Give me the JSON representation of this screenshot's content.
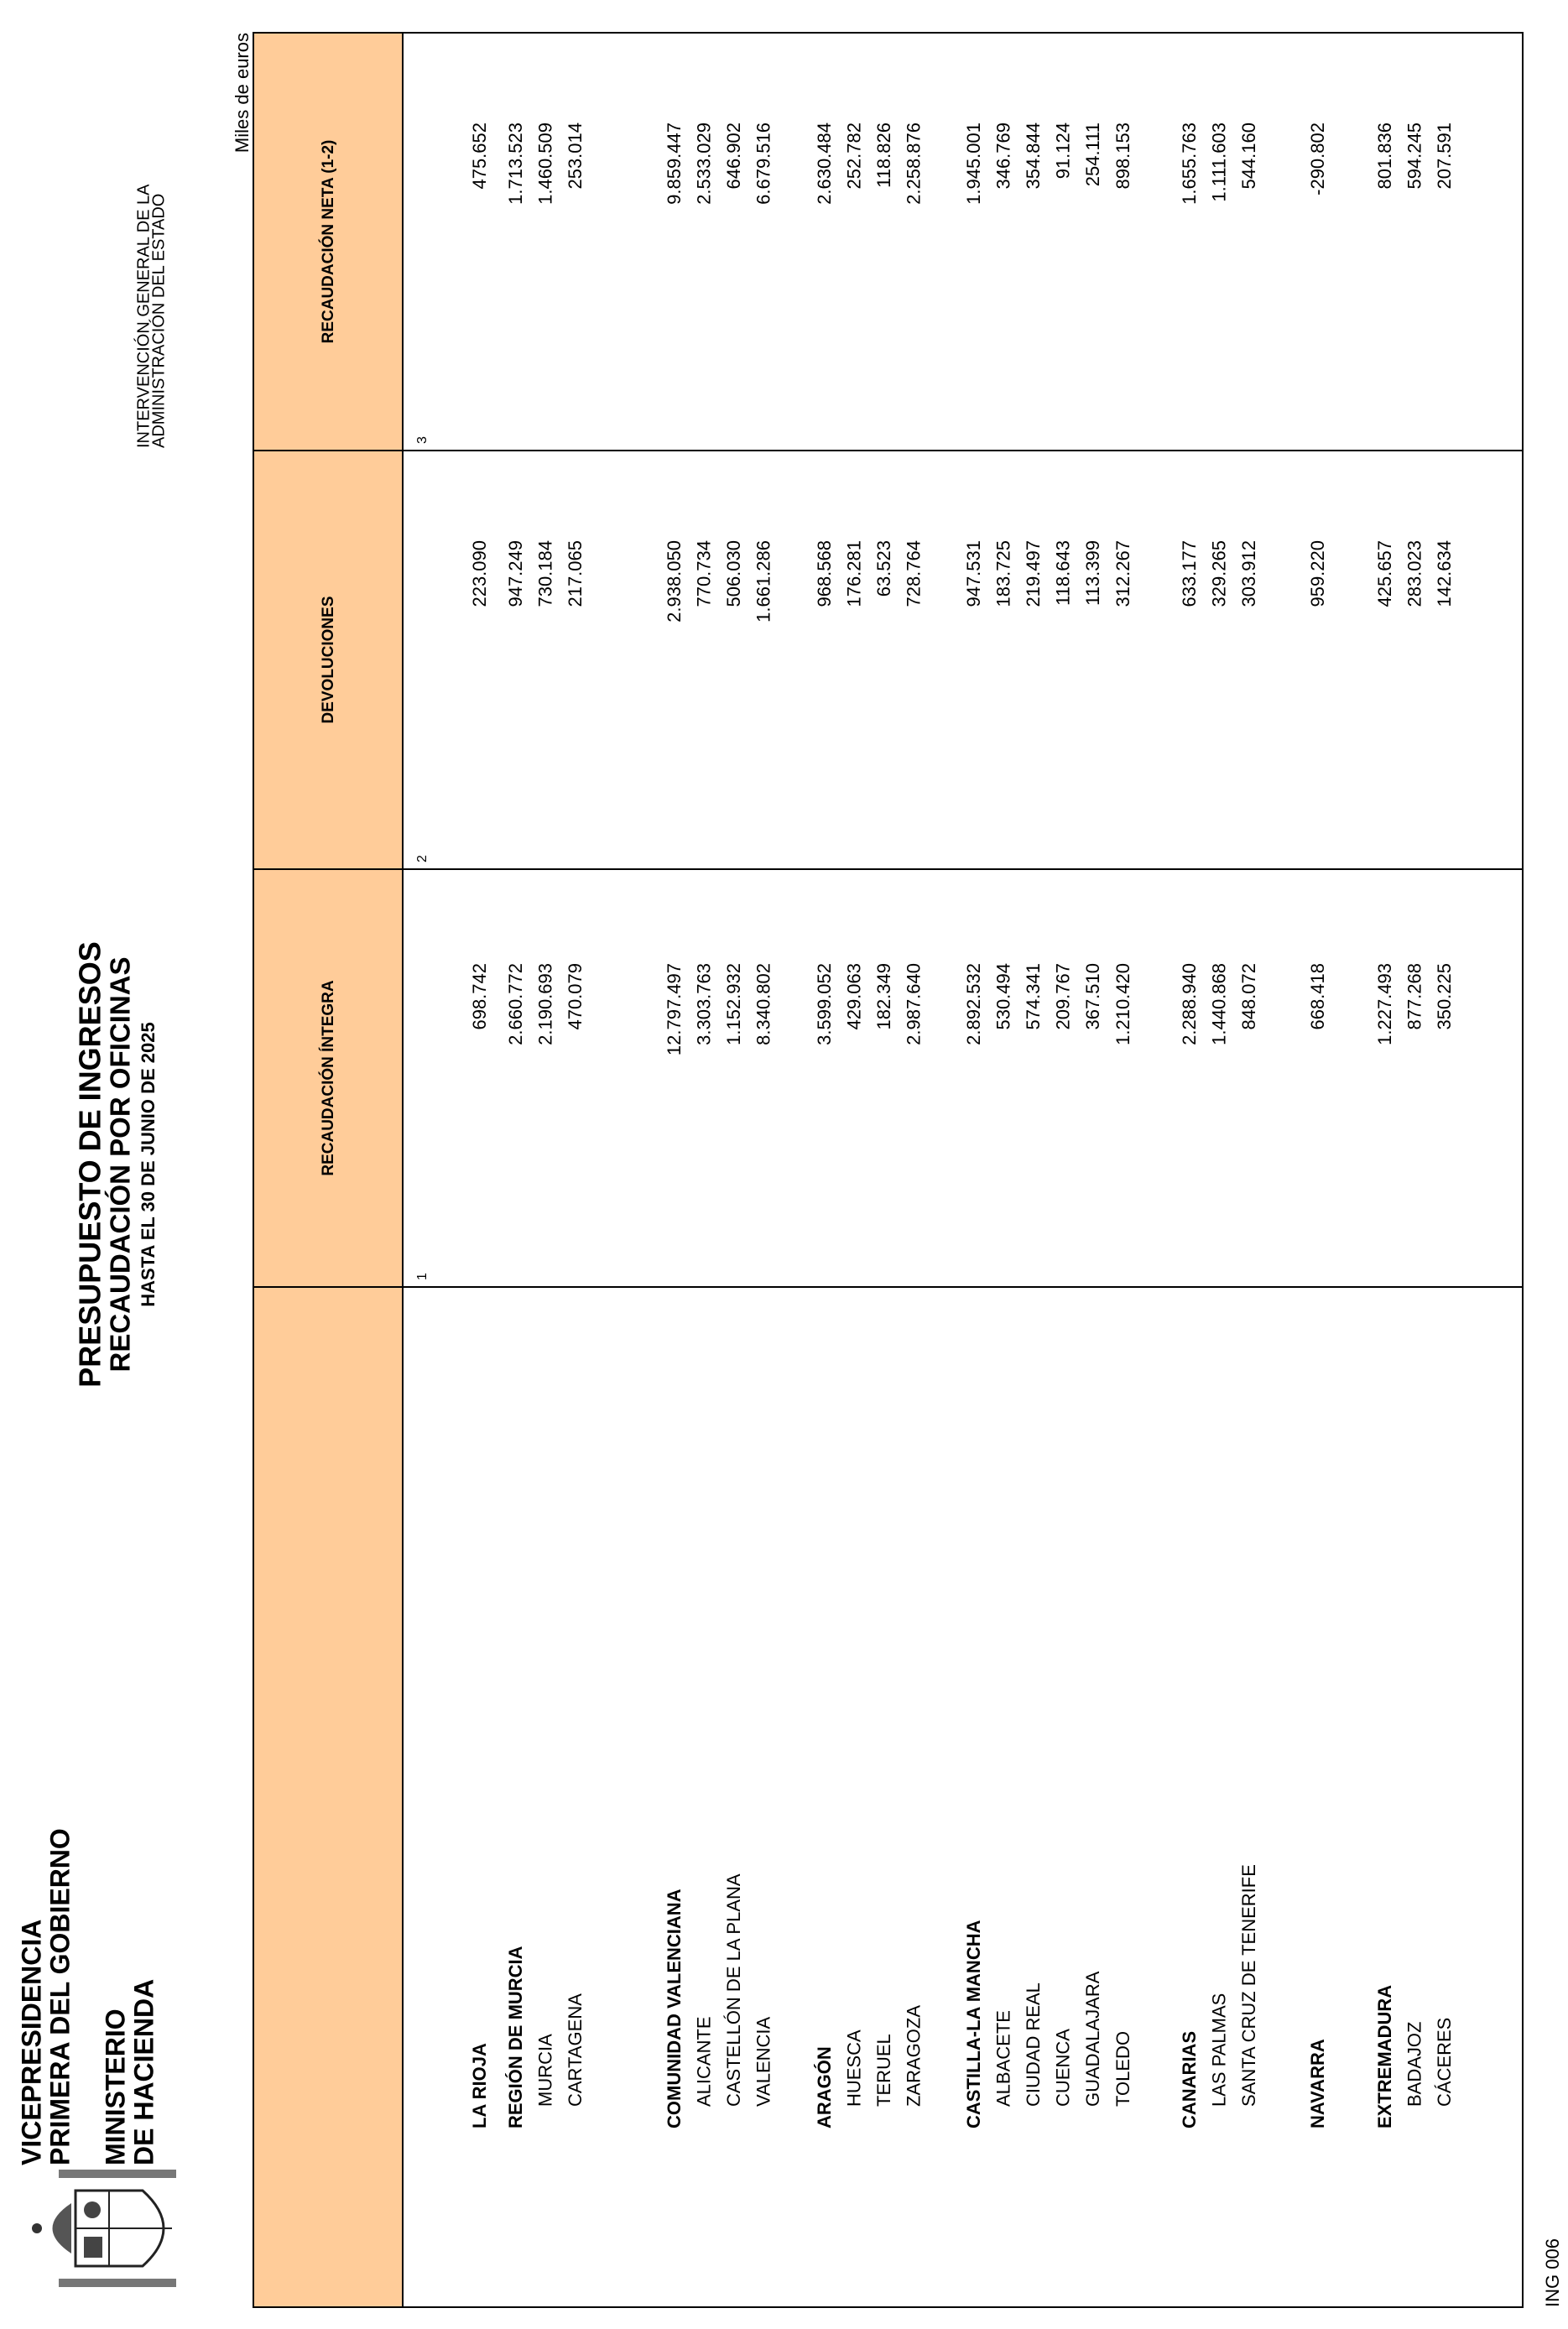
{
  "header": {
    "office": [
      "VICEPRESIDENCIA",
      "PRIMERA DEL GOBIERNO"
    ],
    "ministry": [
      "MINISTERIO",
      "DE HACIENDA"
    ],
    "title": [
      "PRESUPUESTO DE INGRESOS",
      "RECAUDACIÓN POR OFICINAS",
      "HASTA EL 30 DE JUNIO DE 2025"
    ],
    "agency": [
      "INTERVENCIÓN GENERAL DE LA",
      "ADMINISTRACIÓN DEL ESTADO"
    ],
    "units": "Miles de euros"
  },
  "table": {
    "columns": [
      "RECAUDACIÓN ÍNTEGRA",
      "DEVOLUCIONES",
      "RECAUDACIÓN NETA (1-2)"
    ],
    "column_numbers": [
      "1",
      "2",
      "3"
    ],
    "groups": [
      {
        "total": [
          "LA RIOJA",
          "698.742",
          "223.090",
          "475.652"
        ],
        "items": []
      },
      {
        "total": [
          "REGIÓN DE MURCIA",
          "2.660.772",
          "947.249",
          "1.713.523"
        ],
        "items": [
          [
            "MURCIA",
            "2.190.693",
            "730.184",
            "1.460.509"
          ],
          [
            "CARTAGENA",
            "470.079",
            "217.065",
            "253.014"
          ]
        ]
      },
      {
        "total": [
          "COMUNIDAD VALENCIANA",
          "12.797.497",
          "2.938.050",
          "9.859.447"
        ],
        "items": [
          [
            "ALICANTE",
            "3.303.763",
            "770.734",
            "2.533.029"
          ],
          [
            "CASTELLÓN DE LA PLANA",
            "1.152.932",
            "506.030",
            "646.902"
          ],
          [
            "VALENCIA",
            "8.340.802",
            "1.661.286",
            "6.679.516"
          ]
        ]
      },
      {
        "total": [
          "ARAGÓN",
          "3.599.052",
          "968.568",
          "2.630.484"
        ],
        "items": [
          [
            "HUESCA",
            "429.063",
            "176.281",
            "252.782"
          ],
          [
            "TERUEL",
            "182.349",
            "63.523",
            "118.826"
          ],
          [
            "ZARAGOZA",
            "2.987.640",
            "728.764",
            "2.258.876"
          ]
        ]
      },
      {
        "total": [
          "CASTILLA-LA MANCHA",
          "2.892.532",
          "947.531",
          "1.945.001"
        ],
        "items": [
          [
            "ALBACETE",
            "530.494",
            "183.725",
            "346.769"
          ],
          [
            "CIUDAD REAL",
            "574.341",
            "219.497",
            "354.844"
          ],
          [
            "CUENCA",
            "209.767",
            "118.643",
            "91.124"
          ],
          [
            "GUADALAJARA",
            "367.510",
            "113.399",
            "254.111"
          ],
          [
            "TOLEDO",
            "1.210.420",
            "312.267",
            "898.153"
          ]
        ]
      },
      {
        "total": [
          "CANARIAS",
          "2.288.940",
          "633.177",
          "1.655.763"
        ],
        "items": [
          [
            "LAS PALMAS",
            "1.440.868",
            "329.265",
            "1.111.603"
          ],
          [
            "SANTA CRUZ DE TENERIFE",
            "848.072",
            "303.912",
            "544.160"
          ]
        ]
      },
      {
        "total": [
          "NAVARRA",
          "668.418",
          "959.220",
          "-290.802"
        ],
        "items": []
      },
      {
        "total": [
          "EXTREMADURA",
          "1.227.493",
          "425.657",
          "801.836"
        ],
        "items": [
          [
            "BADAJOZ",
            "877.268",
            "283.023",
            "594.245"
          ],
          [
            "CÁCERES",
            "350.225",
            "142.634",
            "207.591"
          ]
        ]
      }
    ]
  },
  "footer": "ING 006"
}
